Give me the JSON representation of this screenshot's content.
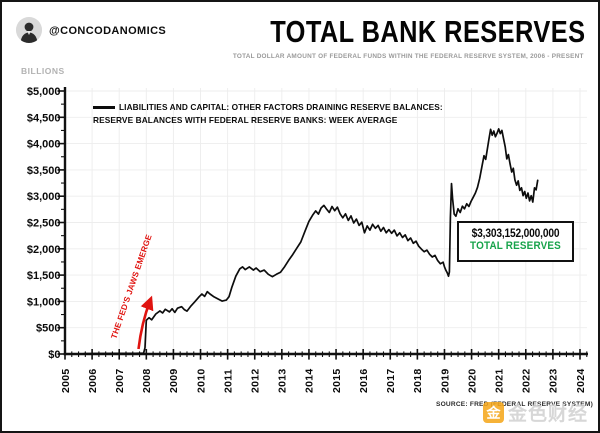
{
  "header": {
    "handle": "@CONCODANOMICS",
    "title": "TOTAL BANK RESERVES",
    "subtitle": "TOTAL DOLLAR AMOUNT OF FEDERAL FUNDS WITHIN THE FEDERAL RESERVE SYSTEM, 2006 - PRESENT"
  },
  "axis_unit_label": "BILLIONS",
  "legend": {
    "line1": "LIABILITIES AND CAPITAL: OTHER FACTORS DRAINING RESERVE BALANCES:",
    "line2": "RESERVE BALANCES WITH FEDERAL RESERVE BANKS: WEEK AVERAGE"
  },
  "annotation": {
    "text": "THE FED'S JAWS EMERGE",
    "color": "#e01410"
  },
  "callout": {
    "value": "$3,303,152,000,000",
    "label": "TOTAL RESERVES",
    "label_color": "#17a34a"
  },
  "source": "SOURCE: FRED (FEDERAL RESERVE SYSTEM)",
  "watermark": {
    "icon_char": "金",
    "text": "金色财经",
    "icon_color": "#f5a81d"
  },
  "chart_data": {
    "type": "line",
    "title": "TOTAL BANK RESERVES",
    "xlabel": "",
    "ylabel": "BILLIONS",
    "xlim": [
      2005,
      2024.3
    ],
    "ylim": [
      0,
      5000
    ],
    "grid": true,
    "legend_position": "upper-left-inside",
    "x_tick_labels": [
      "2005",
      "2006",
      "2007",
      "2008",
      "2009",
      "2010",
      "2011",
      "2012",
      "2013",
      "2014",
      "2015",
      "2016",
      "2017",
      "2018",
      "2019",
      "2020",
      "2021",
      "2022",
      "2023",
      "2024"
    ],
    "y_tick_values": [
      0,
      500,
      1000,
      1500,
      2000,
      2500,
      3000,
      3500,
      4000,
      4500,
      5000
    ],
    "y_tick_labels": [
      "$0",
      "$500",
      "$1,000",
      "$1,500",
      "$2,000",
      "$2,500",
      "$3,000",
      "$3,500",
      "$4,000",
      "$4,500",
      "$5,000"
    ],
    "series": [
      {
        "name": "LIABILITIES AND CAPITAL: OTHER FACTORS DRAINING RESERVE BALANCES: RESERVE BALANCES WITH FEDERAL RESERVE BANKS: WEEK AVERAGE",
        "color": "#0d0d0d",
        "units": "billions of dollars",
        "points": [
          [
            2005.7,
            8
          ],
          [
            2006.3,
            10
          ],
          [
            2007.0,
            12
          ],
          [
            2007.6,
            14
          ],
          [
            2007.9,
            18
          ],
          [
            2007.95,
            120
          ],
          [
            2008.0,
            640
          ],
          [
            2008.1,
            690
          ],
          [
            2008.2,
            650
          ],
          [
            2008.35,
            760
          ],
          [
            2008.5,
            820
          ],
          [
            2008.6,
            780
          ],
          [
            2008.7,
            850
          ],
          [
            2008.85,
            800
          ],
          [
            2008.95,
            860
          ],
          [
            2009.05,
            790
          ],
          [
            2009.15,
            870
          ],
          [
            2009.3,
            900
          ],
          [
            2009.4,
            845
          ],
          [
            2009.5,
            815
          ],
          [
            2009.65,
            915
          ],
          [
            2009.8,
            1000
          ],
          [
            2009.95,
            1090
          ],
          [
            2010.05,
            1140
          ],
          [
            2010.15,
            1095
          ],
          [
            2010.25,
            1185
          ],
          [
            2010.35,
            1140
          ],
          [
            2010.5,
            1085
          ],
          [
            2010.65,
            1045
          ],
          [
            2010.8,
            1005
          ],
          [
            2010.95,
            1025
          ],
          [
            2011.05,
            1090
          ],
          [
            2011.15,
            1260
          ],
          [
            2011.3,
            1480
          ],
          [
            2011.45,
            1620
          ],
          [
            2011.55,
            1655
          ],
          [
            2011.65,
            1605
          ],
          [
            2011.8,
            1655
          ],
          [
            2011.95,
            1595
          ],
          [
            2012.05,
            1635
          ],
          [
            2012.2,
            1565
          ],
          [
            2012.35,
            1595
          ],
          [
            2012.5,
            1515
          ],
          [
            2012.65,
            1470
          ],
          [
            2012.8,
            1515
          ],
          [
            2012.95,
            1555
          ],
          [
            2013.1,
            1660
          ],
          [
            2013.25,
            1780
          ],
          [
            2013.4,
            1890
          ],
          [
            2013.55,
            2010
          ],
          [
            2013.7,
            2130
          ],
          [
            2013.85,
            2330
          ],
          [
            2014.0,
            2520
          ],
          [
            2014.15,
            2650
          ],
          [
            2014.25,
            2720
          ],
          [
            2014.35,
            2660
          ],
          [
            2014.45,
            2775
          ],
          [
            2014.55,
            2825
          ],
          [
            2014.65,
            2755
          ],
          [
            2014.75,
            2690
          ],
          [
            2014.85,
            2805
          ],
          [
            2014.95,
            2725
          ],
          [
            2015.05,
            2790
          ],
          [
            2015.15,
            2665
          ],
          [
            2015.25,
            2590
          ],
          [
            2015.35,
            2665
          ],
          [
            2015.45,
            2540
          ],
          [
            2015.55,
            2625
          ],
          [
            2015.65,
            2490
          ],
          [
            2015.75,
            2565
          ],
          [
            2015.85,
            2445
          ],
          [
            2015.95,
            2505
          ],
          [
            2016.05,
            2305
          ],
          [
            2016.15,
            2435
          ],
          [
            2016.25,
            2355
          ],
          [
            2016.35,
            2465
          ],
          [
            2016.45,
            2390
          ],
          [
            2016.55,
            2445
          ],
          [
            2016.65,
            2335
          ],
          [
            2016.75,
            2405
          ],
          [
            2016.85,
            2305
          ],
          [
            2016.95,
            2365
          ],
          [
            2017.05,
            2295
          ],
          [
            2017.15,
            2355
          ],
          [
            2017.25,
            2245
          ],
          [
            2017.35,
            2305
          ],
          [
            2017.45,
            2215
          ],
          [
            2017.55,
            2265
          ],
          [
            2017.65,
            2155
          ],
          [
            2017.75,
            2205
          ],
          [
            2017.85,
            2105
          ],
          [
            2017.95,
            2145
          ],
          [
            2018.05,
            2050
          ],
          [
            2018.15,
            1995
          ],
          [
            2018.25,
            1945
          ],
          [
            2018.35,
            1975
          ],
          [
            2018.45,
            1895
          ],
          [
            2018.55,
            1845
          ],
          [
            2018.65,
            1875
          ],
          [
            2018.75,
            1775
          ],
          [
            2018.85,
            1715
          ],
          [
            2018.95,
            1745
          ],
          [
            2019.0,
            1655
          ],
          [
            2019.05,
            1595
          ],
          [
            2019.1,
            1545
          ],
          [
            2019.15,
            1480
          ],
          [
            2019.18,
            1560
          ],
          [
            2019.22,
            2600
          ],
          [
            2019.26,
            3240
          ],
          [
            2019.3,
            2950
          ],
          [
            2019.36,
            2660
          ],
          [
            2019.42,
            2620
          ],
          [
            2019.5,
            2760
          ],
          [
            2019.58,
            2690
          ],
          [
            2019.66,
            2810
          ],
          [
            2019.74,
            2760
          ],
          [
            2019.82,
            2855
          ],
          [
            2019.9,
            2805
          ],
          [
            2019.98,
            2900
          ],
          [
            2020.06,
            2980
          ],
          [
            2020.14,
            3060
          ],
          [
            2020.22,
            3170
          ],
          [
            2020.3,
            3340
          ],
          [
            2020.38,
            3560
          ],
          [
            2020.46,
            3770
          ],
          [
            2020.52,
            3700
          ],
          [
            2020.58,
            3890
          ],
          [
            2020.64,
            4080
          ],
          [
            2020.7,
            4270
          ],
          [
            2020.76,
            4160
          ],
          [
            2020.82,
            4240
          ],
          [
            2020.88,
            4130
          ],
          [
            2020.94,
            4200
          ],
          [
            2021.0,
            4280
          ],
          [
            2021.06,
            4190
          ],
          [
            2021.12,
            4250
          ],
          [
            2021.18,
            4090
          ],
          [
            2021.24,
            3940
          ],
          [
            2021.3,
            3710
          ],
          [
            2021.36,
            3790
          ],
          [
            2021.42,
            3610
          ],
          [
            2021.48,
            3460
          ],
          [
            2021.54,
            3530
          ],
          [
            2021.6,
            3310
          ],
          [
            2021.66,
            3210
          ],
          [
            2021.72,
            3290
          ],
          [
            2021.78,
            3110
          ],
          [
            2021.84,
            3160
          ],
          [
            2021.9,
            3010
          ],
          [
            2021.96,
            3090
          ],
          [
            2022.02,
            2960
          ],
          [
            2022.08,
            3060
          ],
          [
            2022.14,
            2910
          ],
          [
            2022.2,
            3010
          ],
          [
            2022.26,
            2890
          ],
          [
            2022.32,
            3160
          ],
          [
            2022.38,
            3120
          ],
          [
            2022.44,
            3303
          ]
        ]
      }
    ]
  }
}
